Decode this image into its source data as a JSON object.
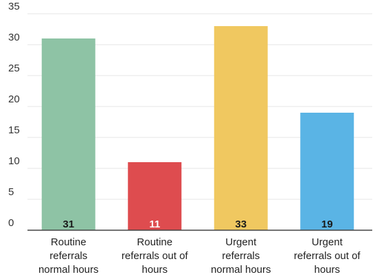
{
  "chart_data": {
    "type": "bar",
    "categories": [
      [
        "Routine",
        "referrals",
        "normal hours"
      ],
      [
        "Routine",
        "referrals out of",
        "hours"
      ],
      [
        "Urgent",
        "referrals",
        "normal hours"
      ],
      [
        "Urgent",
        "referrals out of",
        "hours"
      ]
    ],
    "values": [
      31,
      11,
      33,
      19
    ],
    "colors": [
      "#8ec3a5",
      "#de4c4f",
      "#f0c860",
      "#5ab4e5"
    ],
    "label_colors": [
      "#1a1a1a",
      "#ffffff",
      "#1a1a1a",
      "#1a1a1a"
    ],
    "ylim": [
      0,
      35
    ],
    "yticks": [
      0,
      5,
      10,
      15,
      20,
      25,
      30,
      35
    ],
    "grid": true,
    "title": "",
    "xlabel": "",
    "ylabel": ""
  }
}
